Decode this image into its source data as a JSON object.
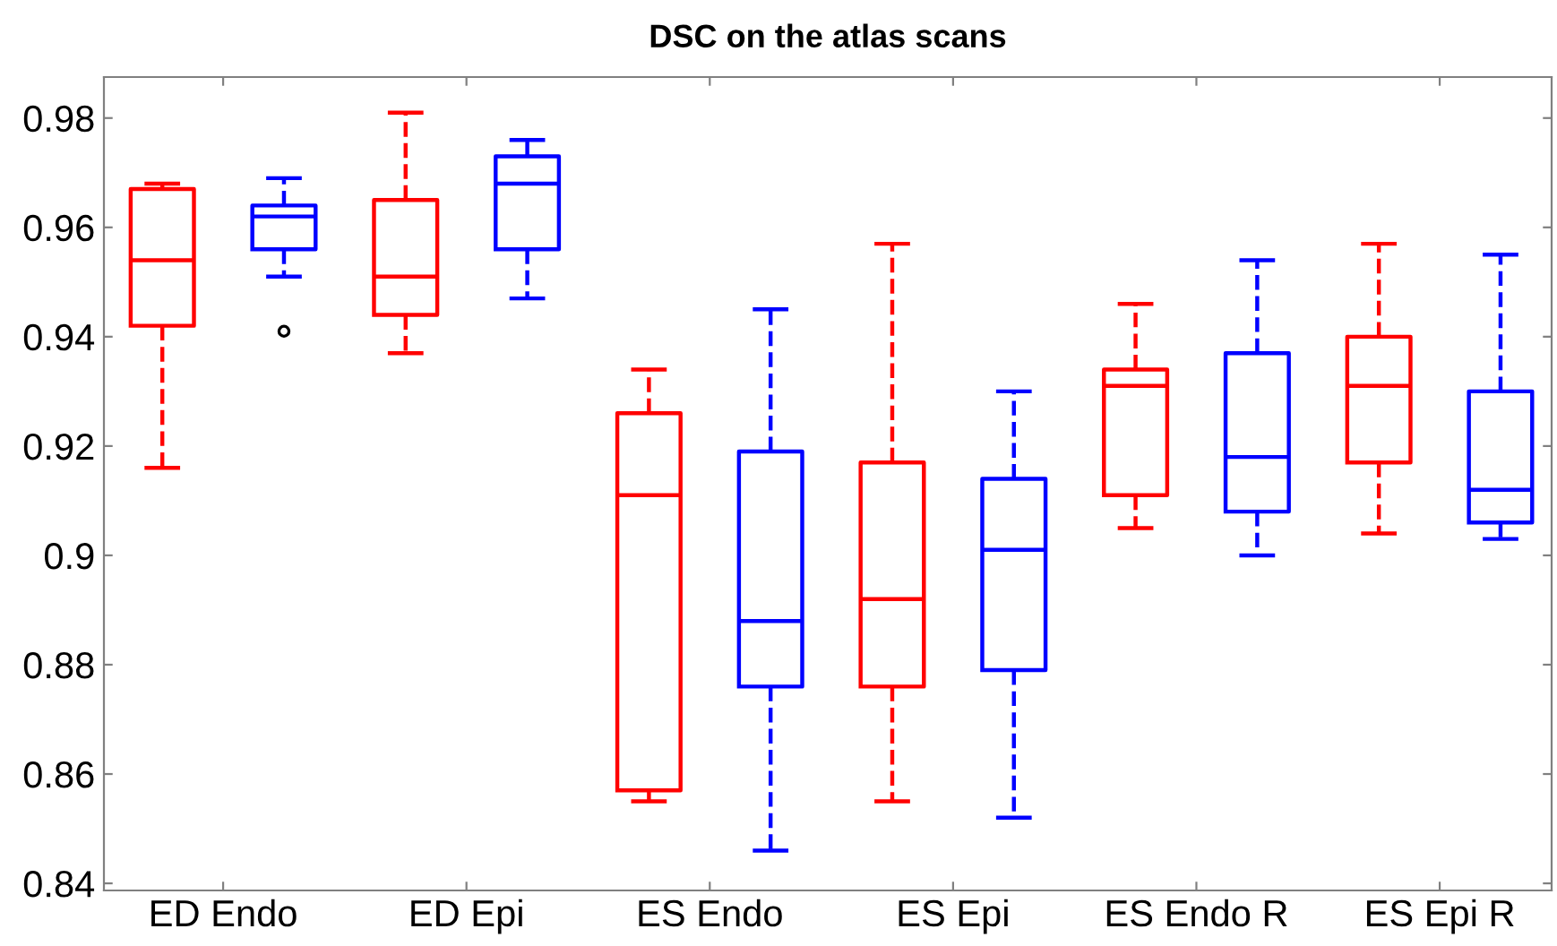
{
  "chart_data": {
    "type": "box",
    "title": "DSC on the atlas scans",
    "categories": [
      "ED Endo",
      "ED Epi",
      "ES Endo",
      "ES Epi",
      "ES Endo R",
      "ES Epi R"
    ],
    "ylim": [
      0.8387,
      0.9875
    ],
    "yticks": [
      0.84,
      0.86,
      0.88,
      0.9,
      0.92,
      0.94,
      0.96,
      0.98
    ],
    "line_style": "dashed",
    "series": [
      {
        "color": "#ff0000",
        "boxes": [
          {
            "low": 0.916,
            "q1": 0.942,
            "median": 0.954,
            "q3": 0.967,
            "high": 0.968
          },
          {
            "low": 0.937,
            "q1": 0.944,
            "median": 0.951,
            "q3": 0.965,
            "high": 0.981
          },
          {
            "low": 0.855,
            "q1": 0.857,
            "median": 0.911,
            "q3": 0.926,
            "high": 0.934
          },
          {
            "low": 0.855,
            "q1": 0.876,
            "median": 0.892,
            "q3": 0.917,
            "high": 0.957
          },
          {
            "low": 0.905,
            "q1": 0.911,
            "median": 0.931,
            "q3": 0.934,
            "high": 0.946
          },
          {
            "low": 0.904,
            "q1": 0.917,
            "median": 0.931,
            "q3": 0.94,
            "high": 0.957
          }
        ]
      },
      {
        "color": "#0000ff",
        "boxes": [
          {
            "low": 0.951,
            "q1": 0.956,
            "median": 0.962,
            "q3": 0.964,
            "high": 0.969,
            "outliers": [
              0.941
            ]
          },
          {
            "low": 0.947,
            "q1": 0.956,
            "median": 0.968,
            "q3": 0.973,
            "high": 0.976
          },
          {
            "low": 0.846,
            "q1": 0.876,
            "median": 0.888,
            "q3": 0.919,
            "high": 0.945
          },
          {
            "low": 0.852,
            "q1": 0.879,
            "median": 0.901,
            "q3": 0.914,
            "high": 0.93
          },
          {
            "low": 0.9,
            "q1": 0.908,
            "median": 0.918,
            "q3": 0.937,
            "high": 0.954
          },
          {
            "low": 0.903,
            "q1": 0.906,
            "median": 0.912,
            "q3": 0.93,
            "high": 0.955
          }
        ]
      }
    ]
  }
}
